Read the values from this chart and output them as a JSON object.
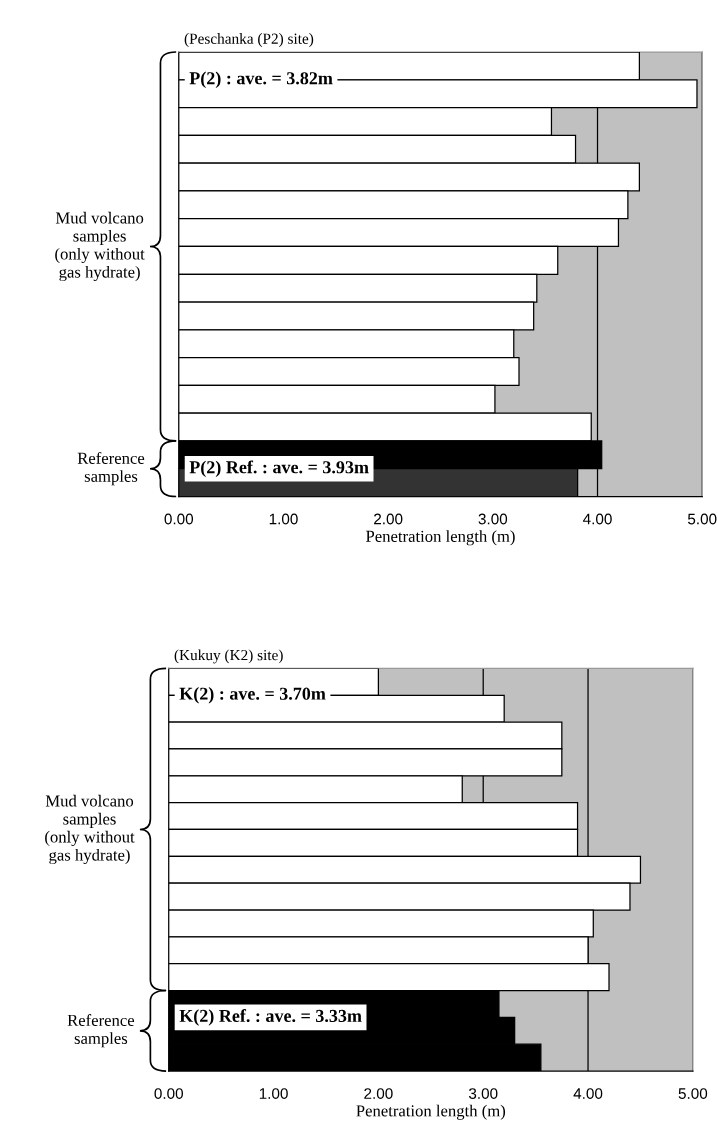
{
  "chart_data": [
    {
      "type": "bar",
      "orientation": "horizontal",
      "title": "(Peschanka (P2) site)",
      "xlabel": "Penetration length (m)",
      "categories": [
        null,
        null,
        null,
        null,
        null,
        null,
        null,
        null,
        null,
        null,
        null,
        null,
        null,
        null,
        null,
        null
      ],
      "series": [
        {
          "name": "Mud volcano\nsamples\n(only without\ngas hydrate)",
          "color": "#ffffff",
          "values": [
            4.4,
            4.95,
            3.56,
            3.79,
            4.4,
            4.29,
            4.2,
            3.62,
            3.42,
            3.39,
            3.2,
            3.25,
            3.02,
            3.94,
            null,
            null
          ]
        },
        {
          "name": "Reference\nsamples",
          "colors": [
            null,
            null,
            null,
            null,
            null,
            null,
            null,
            null,
            null,
            null,
            null,
            null,
            null,
            null,
            "#000000",
            "#333333"
          ],
          "values": [
            null,
            null,
            null,
            null,
            null,
            null,
            null,
            null,
            null,
            null,
            null,
            null,
            null,
            null,
            4.04,
            3.81
          ]
        }
      ],
      "annotations": [
        "P(2) : ave. = 3.82m",
        "P(2) Ref. : ave. = 3.93m"
      ],
      "xlim": [
        0,
        5
      ],
      "xticks": [
        {
          "value": 0,
          "label": "0.00"
        },
        {
          "value": 1,
          "label": "1.00"
        },
        {
          "value": 2,
          "label": "2.00"
        },
        {
          "value": 3,
          "label": "3.00"
        },
        {
          "value": 4,
          "label": "4.00"
        },
        {
          "value": 5,
          "label": "5.00"
        }
      ],
      "grid": "x"
    },
    {
      "type": "bar",
      "orientation": "horizontal",
      "title": "(Kukuy (K2) site)",
      "xlabel": "Penetration length (m)",
      "categories": [
        null,
        null,
        null,
        null,
        null,
        null,
        null,
        null,
        null,
        null,
        null,
        null,
        null,
        null,
        null
      ],
      "series": [
        {
          "name": "Mud volcano\nsamples\n(only without\ngas hydrate)",
          "color": "#ffffff",
          "values": [
            2.0,
            3.2,
            3.75,
            3.75,
            2.8,
            3.9,
            3.9,
            4.5,
            4.4,
            4.05,
            4.0,
            4.2,
            null,
            null,
            null
          ]
        },
        {
          "name": "Reference\nsamples",
          "colors": [
            null,
            null,
            null,
            null,
            null,
            null,
            null,
            null,
            null,
            null,
            null,
            null,
            "#000000",
            "#000000",
            "#000000"
          ],
          "values": [
            null,
            null,
            null,
            null,
            null,
            null,
            null,
            null,
            null,
            null,
            null,
            null,
            3.15,
            3.3,
            3.55
          ]
        }
      ],
      "annotations": [
        "K(2) : ave. = 3.70m",
        "K(2) Ref. : ave. = 3.33m"
      ],
      "xlim": [
        0,
        5
      ],
      "xticks": [
        {
          "value": 0,
          "label": "0.00"
        },
        {
          "value": 1,
          "label": "1.00"
        },
        {
          "value": 2,
          "label": "2.00"
        },
        {
          "value": 3,
          "label": "3.00"
        },
        {
          "value": 4,
          "label": "4.00"
        },
        {
          "value": 5,
          "label": "5.00"
        }
      ],
      "grid": "x"
    }
  ]
}
